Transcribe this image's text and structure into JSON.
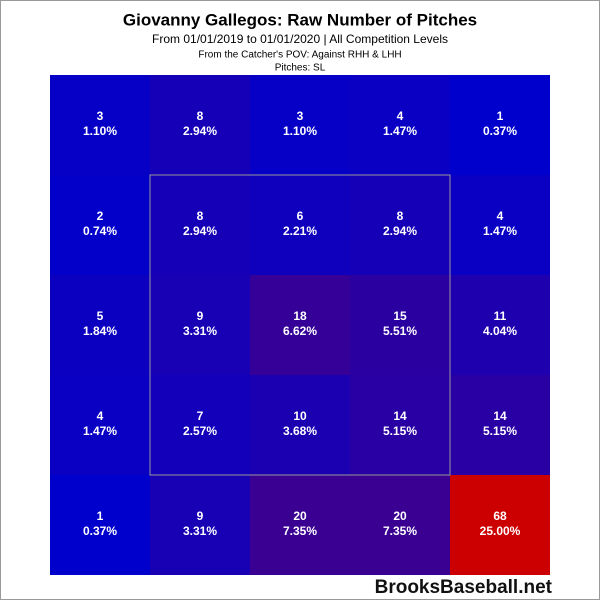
{
  "chart_data": {
    "type": "heatmap",
    "title": "Giovanny Gallegos: Raw Number of Pitches",
    "subtitle": "From 01/01/2019 to 01/01/2020 | All Competition Levels",
    "subtitle2": "From the Catcher's POV:  Against RHH & LHH",
    "subtitle3": "Pitches:  SL",
    "watermark": "BrooksBaseball.net",
    "colorscale": [
      "#0000cc",
      "#cc0000"
    ],
    "values": [
      [
        3,
        8,
        3,
        4,
        1
      ],
      [
        2,
        8,
        6,
        8,
        4
      ],
      [
        5,
        9,
        18,
        15,
        11
      ],
      [
        4,
        7,
        10,
        14,
        14
      ],
      [
        1,
        9,
        20,
        20,
        68
      ]
    ],
    "percents": [
      [
        1.1,
        2.94,
        1.1,
        1.47,
        0.37
      ],
      [
        0.74,
        2.94,
        2.21,
        2.94,
        1.47
      ],
      [
        1.84,
        3.31,
        6.62,
        5.51,
        4.04
      ],
      [
        1.47,
        2.57,
        3.68,
        5.15,
        5.15
      ],
      [
        0.37,
        3.31,
        7.35,
        7.35,
        25
      ]
    ],
    "percent_labels": [
      [
        "1.10%",
        "2.94%",
        "1.10%",
        "1.47%",
        "0.37%"
      ],
      [
        "0.74%",
        "2.94%",
        "2.21%",
        "2.94%",
        "1.47%"
      ],
      [
        "1.84%",
        "3.31%",
        "6.62%",
        "5.51%",
        "4.04%"
      ],
      [
        "1.47%",
        "2.57%",
        "3.68%",
        "5.15%",
        "5.15%"
      ],
      [
        "0.37%",
        "3.31%",
        "7.35%",
        "7.35%",
        "25.00%"
      ]
    ]
  }
}
